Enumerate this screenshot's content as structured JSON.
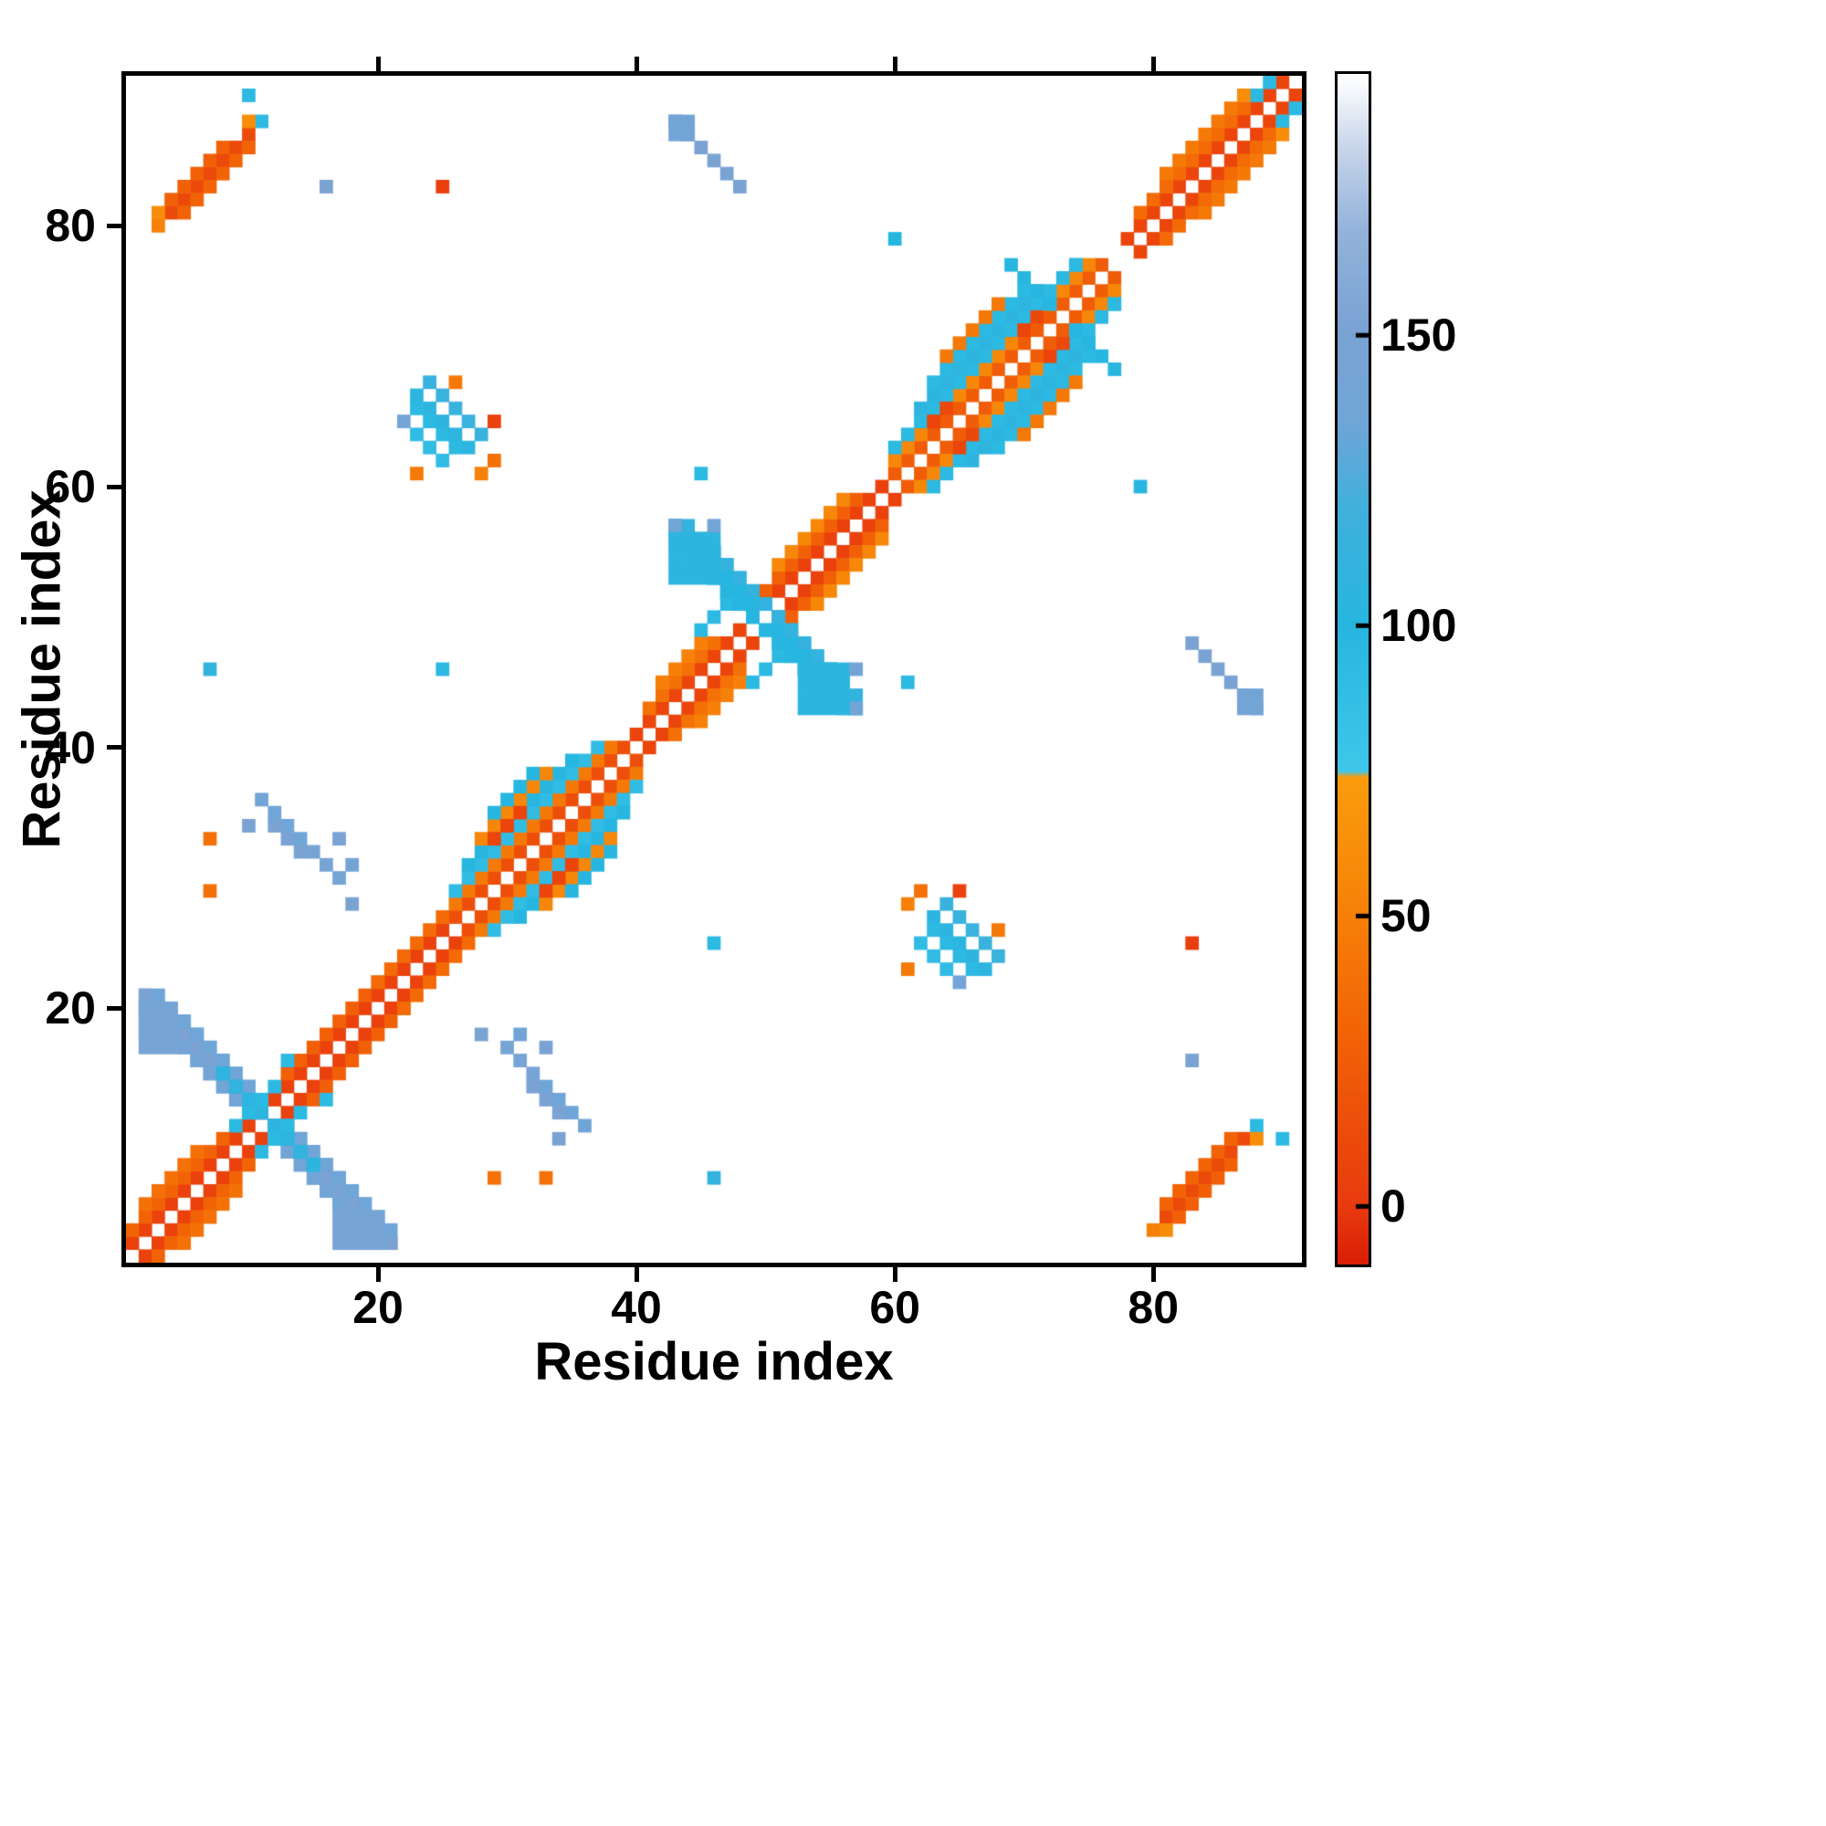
{
  "chart_data": {
    "type": "heatmap",
    "title": "",
    "xlabel": "Residue index",
    "ylabel": "Residue index",
    "n": 91,
    "x_range": [
      0.5,
      91.5
    ],
    "y_range": [
      0.5,
      91.5
    ],
    "x_ticks": [
      20,
      40,
      60,
      80
    ],
    "y_ticks": [
      20,
      40,
      60,
      80
    ],
    "symmetric": true,
    "background_color": "#ffffff",
    "colorbar": {
      "vmin": -10,
      "vmax": 195,
      "ticks": [
        0,
        50,
        100,
        150
      ],
      "stops": [
        [
          -10,
          "#d81e05"
        ],
        [
          0,
          "#e83a0e"
        ],
        [
          30,
          "#f26306"
        ],
        [
          55,
          "#f78708"
        ],
        [
          74,
          "#fb9c0c"
        ],
        [
          75,
          "#3fc6ea"
        ],
        [
          100,
          "#27b6e0"
        ],
        [
          120,
          "#3fb0dc"
        ],
        [
          135,
          "#6fa5d7"
        ],
        [
          152,
          "#7ba3d3"
        ],
        [
          168,
          "#93b2db"
        ],
        [
          182,
          "#c6d4e9"
        ],
        [
          192,
          "#f4f7fb"
        ],
        [
          195,
          "#ffffff"
        ]
      ]
    },
    "cells": [
      {
        "t": "d",
        "x": 1,
        "y": 2,
        "n": 24,
        "v": 5
      },
      {
        "t": "p",
        "x": 25,
        "y": 26,
        "v": 5
      },
      {
        "t": "d",
        "x": 26,
        "y": 27,
        "n": 14,
        "v": 15
      },
      {
        "t": "d",
        "x": 40,
        "y": 41,
        "n": 9,
        "v": 8
      },
      {
        "t": "d",
        "x": 50,
        "y": 51,
        "n": 10,
        "v": 5
      },
      {
        "t": "d",
        "x": 60,
        "y": 61,
        "n": 17,
        "v": 25
      },
      {
        "t": "d",
        "x": 78,
        "y": 79,
        "n": 13,
        "v": 8
      },
      {
        "t": "d",
        "x": 1,
        "y": 3,
        "n": 8,
        "v": 30
      },
      {
        "t": "d",
        "x": 13,
        "y": 15,
        "n": 8,
        "v": 28
      },
      {
        "t": "d",
        "x": 20,
        "y": 22,
        "n": 6,
        "v": 35
      },
      {
        "t": "d",
        "x": 26,
        "y": 28,
        "n": 13,
        "v": 45
      },
      {
        "t": "d",
        "x": 41,
        "y": 43,
        "n": 6,
        "v": 40
      },
      {
        "t": "d",
        "x": 50,
        "y": 52,
        "n": 8,
        "v": 28
      },
      {
        "t": "d",
        "x": 60,
        "y": 62,
        "n": 16,
        "v": 55
      },
      {
        "t": "d",
        "x": 79,
        "y": 81,
        "n": 10,
        "v": 35
      },
      {
        "t": "d",
        "x": 88,
        "y": 90,
        "n": 2,
        "v": 95
      },
      {
        "t": "d",
        "x": 2,
        "y": 5,
        "n": 5,
        "v": 40
      },
      {
        "t": "d",
        "x": 26,
        "y": 29,
        "n": 12,
        "v": 90
      },
      {
        "t": "d",
        "x": 42,
        "y": 45,
        "n": 4,
        "v": 50
      },
      {
        "t": "d",
        "x": 51,
        "y": 54,
        "n": 6,
        "v": 55
      },
      {
        "t": "d",
        "x": 60,
        "y": 63,
        "n": 15,
        "v": 95
      },
      {
        "t": "d",
        "x": 81,
        "y": 84,
        "n": 6,
        "v": 45
      },
      {
        "t": "d",
        "x": 27,
        "y": 31,
        "n": 9,
        "v": 100
      },
      {
        "t": "d",
        "x": 62,
        "y": 66,
        "n": 10,
        "v": 105
      },
      {
        "t": "d",
        "x": 45,
        "y": 49,
        "n": 4,
        "v": 95
      },
      {
        "t": "d",
        "x": 28,
        "y": 33,
        "n": 6,
        "v": 55
      },
      {
        "t": "d",
        "x": 63,
        "y": 68,
        "n": 8,
        "v": 95
      },
      {
        "t": "d",
        "x": 29,
        "y": 35,
        "n": 4,
        "v": 100
      },
      {
        "t": "d",
        "x": 64,
        "y": 70,
        "n": 5,
        "v": 45
      },
      {
        "t": "d",
        "x": 29,
        "y": 33,
        "n": 3,
        "v": 8
      },
      {
        "t": "a",
        "x": 2,
        "y": 21,
        "n": 20,
        "v": 150
      },
      {
        "t": "a",
        "x": 3,
        "y": 21,
        "n": 17,
        "v": 135
      },
      {
        "t": "a",
        "x": 2,
        "y": 20,
        "n": 18,
        "v": 140
      },
      {
        "t": "a",
        "x": 8,
        "y": 15,
        "n": 8,
        "v": 105
      },
      {
        "t": "r",
        "x": 2,
        "y": 18,
        "w": 3,
        "h": 3,
        "v": 145
      },
      {
        "t": "r",
        "x": 17,
        "y": 2,
        "w": 4,
        "h": 3,
        "v": 145
      },
      {
        "t": "p",
        "x": 13,
        "y": 16,
        "v": 95
      },
      {
        "t": "p",
        "x": 9,
        "y": 14,
        "v": 110
      },
      {
        "t": "d",
        "x": 9,
        "y": 11,
        "n": 4,
        "v": 95
      },
      {
        "t": "a",
        "x": 43,
        "y": 57,
        "n": 15,
        "v": 100
      },
      {
        "t": "a",
        "x": 44,
        "y": 57,
        "n": 13,
        "v": 110
      },
      {
        "t": "a",
        "x": 43,
        "y": 56,
        "n": 13,
        "v": 100
      },
      {
        "t": "a",
        "x": 43,
        "y": 57,
        "n": 3,
        "v": 140
      },
      {
        "t": "r",
        "x": 53,
        "y": 43,
        "w": 4,
        "h": 4,
        "v": 105
      },
      {
        "t": "p",
        "x": 57,
        "y": 46,
        "v": 140
      },
      {
        "t": "p",
        "x": 63,
        "y": 65,
        "v": 8
      },
      {
        "t": "p",
        "x": 64,
        "y": 66,
        "v": 10
      },
      {
        "t": "p",
        "x": 70,
        "y": 72,
        "v": 8
      },
      {
        "t": "p",
        "x": 71,
        "y": 73,
        "v": 10
      },
      {
        "t": "a",
        "x": 69,
        "y": 77,
        "n": 4,
        "v": 100
      },
      {
        "t": "p",
        "x": 74,
        "y": 77,
        "v": 95
      },
      {
        "t": "p",
        "x": 87,
        "y": 90,
        "v": 60
      },
      {
        "t": "d",
        "x": 4,
        "y": 81,
        "n": 7,
        "v": 12
      },
      {
        "t": "d",
        "x": 5,
        "y": 81,
        "n": 6,
        "v": 30
      },
      {
        "t": "d",
        "x": 4,
        "y": 82,
        "n": 5,
        "v": 28
      },
      {
        "t": "p",
        "x": 3,
        "y": 80,
        "v": 50
      },
      {
        "t": "p",
        "x": 3,
        "y": 81,
        "v": 60
      },
      {
        "t": "p",
        "x": 11,
        "y": 88,
        "v": 95
      },
      {
        "t": "p",
        "x": 10,
        "y": 88,
        "v": 60
      },
      {
        "t": "p",
        "x": 10,
        "y": 90,
        "v": 95
      },
      {
        "t": "p",
        "x": 16,
        "y": 83,
        "v": 150
      },
      {
        "t": "a",
        "x": 43,
        "y": 88,
        "n": 6,
        "v": 150
      },
      {
        "t": "r",
        "x": 43,
        "y": 87,
        "w": 2,
        "h": 2,
        "v": 140
      },
      {
        "t": "a",
        "x": 23,
        "y": 67,
        "n": 5,
        "v": 105
      },
      {
        "t": "a",
        "x": 23,
        "y": 66,
        "n": 4,
        "v": 95
      },
      {
        "t": "a",
        "x": 24,
        "y": 68,
        "n": 5,
        "v": 115
      },
      {
        "t": "a",
        "x": 23,
        "y": 64,
        "n": 3,
        "v": 90
      },
      {
        "t": "p",
        "x": 22,
        "y": 65,
        "v": 140
      },
      {
        "t": "p",
        "x": 23,
        "y": 61,
        "v": 45
      },
      {
        "t": "p",
        "x": 28,
        "y": 61,
        "v": 50
      },
      {
        "t": "p",
        "x": 29,
        "y": 62,
        "v": 40
      },
      {
        "t": "p",
        "x": 29,
        "y": 65,
        "v": 5
      },
      {
        "t": "p",
        "x": 26,
        "y": 68,
        "v": 45
      },
      {
        "t": "a",
        "x": 11,
        "y": 36,
        "n": 4,
        "v": 135
      },
      {
        "t": "a",
        "x": 12,
        "y": 34,
        "n": 3,
        "v": 150
      },
      {
        "t": "a",
        "x": 15,
        "y": 32,
        "n": 3,
        "v": 145
      },
      {
        "t": "p",
        "x": 10,
        "y": 34,
        "v": 150
      },
      {
        "t": "p",
        "x": 17,
        "y": 33,
        "v": 150
      },
      {
        "t": "p",
        "x": 18,
        "y": 28,
        "v": 150
      },
      {
        "t": "p",
        "x": 18,
        "y": 31,
        "v": 140
      },
      {
        "t": "p",
        "x": 7,
        "y": 33,
        "v": 40
      },
      {
        "t": "p",
        "x": 7,
        "y": 29,
        "v": 40
      },
      {
        "t": "p",
        "x": 25,
        "y": 83,
        "v": 3
      },
      {
        "t": "p",
        "x": 7,
        "y": 46,
        "v": 110
      },
      {
        "t": "p",
        "x": 25,
        "y": 46,
        "v": 95
      },
      {
        "t": "p",
        "x": 45,
        "y": 61,
        "v": 95
      },
      {
        "t": "p",
        "x": 60,
        "y": 79,
        "v": 100
      }
    ]
  }
}
